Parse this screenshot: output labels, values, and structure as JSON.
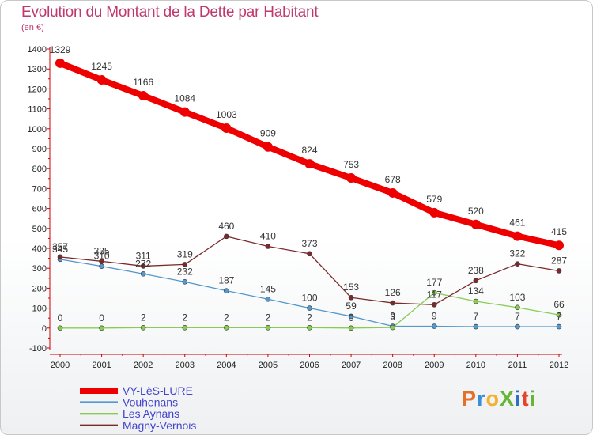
{
  "header": {
    "title": "Evolution du Montant de la Dette par Habitant",
    "subtitle": "(en €)"
  },
  "logo": {
    "text": "ProXiti",
    "colors": [
      "#e5702a",
      "#3a8fd4",
      "#f2b22a",
      "#66b632",
      "#2f6fc4",
      "#e5442a",
      "#66b632"
    ]
  },
  "chart_data": {
    "type": "line",
    "categories": [
      "2000",
      "2001",
      "2002",
      "2003",
      "2004",
      "2005",
      "2006",
      "2007",
      "2008",
      "2009",
      "2010",
      "2011",
      "2012"
    ],
    "ylim": [
      -100,
      1400
    ],
    "yticks": [
      "-100",
      "0",
      "100",
      "200",
      "300",
      "400",
      "500",
      "600",
      "700",
      "800",
      "900",
      "1000",
      "1100",
      "1200",
      "1300",
      "1400"
    ],
    "grid": false,
    "legend_position": "bottom-left",
    "series": [
      {
        "name": "VY-LèS-LURE",
        "color": "#ee0000",
        "values": [
          1329,
          1245,
          1166,
          1084,
          1003,
          909,
          824,
          753,
          678,
          579,
          520,
          461,
          415
        ],
        "labels": [
          "1329",
          "1245",
          "1166",
          "1084",
          "1003",
          "909",
          "824",
          "753",
          "678",
          "579",
          "520",
          "461",
          "415"
        ]
      },
      {
        "name": "Vouhenans",
        "color": "#5599cc",
        "values": [
          345,
          310,
          272,
          232,
          187,
          145,
          100,
          59,
          9,
          9,
          7,
          7,
          7
        ],
        "labels": [
          "345",
          "310",
          "272",
          "232",
          "187",
          "145",
          "100",
          "59",
          "9",
          "9",
          "7",
          "7",
          "7"
        ]
      },
      {
        "name": "Les Aynans",
        "color": "#88cc55",
        "values": [
          0,
          0,
          2,
          2,
          2,
          2,
          2,
          0,
          3,
          177,
          134,
          103,
          66
        ],
        "labels": [
          "0",
          "0",
          "2",
          "2",
          "2",
          "2",
          "2",
          "0",
          "3",
          "177",
          "134",
          "103",
          "66"
        ]
      },
      {
        "name": "Magny-Vernois",
        "color": "#7a2a2a",
        "values": [
          357,
          335,
          311,
          319,
          460,
          410,
          373,
          153,
          126,
          117,
          238,
          322,
          287
        ],
        "labels": [
          "357",
          "335",
          "311",
          "319",
          "460",
          "410",
          "373",
          "153",
          "126",
          "117",
          "238",
          "322",
          "287"
        ]
      }
    ]
  }
}
